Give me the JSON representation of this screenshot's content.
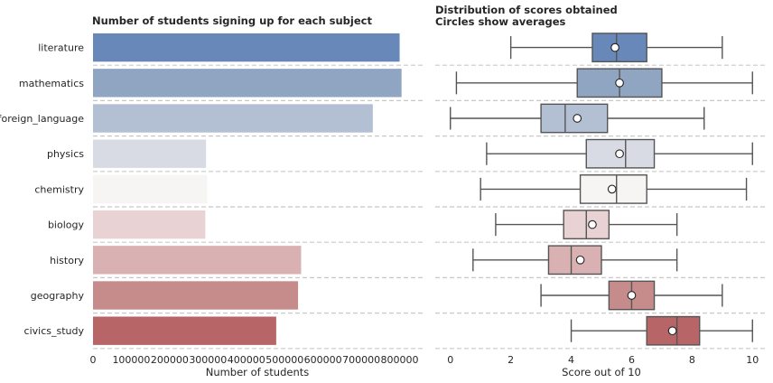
{
  "chart_data": [
    {
      "type": "bar",
      "orientation": "horizontal",
      "title": "Number of students signing up for each subject",
      "xlabel": "Number of students",
      "ylabel": "",
      "xlim": [
        0,
        860000
      ],
      "xticks": [
        "0",
        "100000",
        "200000",
        "300000",
        "400000",
        "500000",
        "600000",
        "700000",
        "800000"
      ],
      "xtick_values": [
        0,
        100000,
        200000,
        300000,
        400000,
        500000,
        600000,
        700000,
        800000
      ],
      "categories": [
        "literature",
        "mathematics",
        "foreign_language",
        "physics",
        "chemistry",
        "biology",
        "history",
        "geography",
        "civics_study"
      ],
      "values": [
        800000,
        805000,
        730000,
        295000,
        298000,
        293000,
        543000,
        535000,
        478000
      ],
      "colors": [
        "#6788b8",
        "#8fa5c2",
        "#b3bfd3",
        "#d8dbe4",
        "#f7f4f4",
        "#e8d2d3",
        "#d9b1b2",
        "#c68c8c",
        "#b76566"
      ],
      "grid": "dashed separators between rows"
    },
    {
      "type": "box",
      "orientation": "horizontal",
      "title": "Distribution of scores obtained\nCircles show averages",
      "title_lines": [
        "Distribution of scores obtained",
        "Circles show averages"
      ],
      "xlabel": "Score out of 10",
      "ylabel": "",
      "xlim": [
        -0.5,
        10.5
      ],
      "xticks": [
        "0",
        "2",
        "4",
        "6",
        "8",
        "10"
      ],
      "xtick_values": [
        0,
        2,
        4,
        6,
        8,
        10
      ],
      "categories": [
        "literature",
        "mathematics",
        "foreign_language",
        "physics",
        "chemistry",
        "biology",
        "history",
        "geography",
        "civics_study"
      ],
      "boxes": [
        {
          "min": 2.0,
          "q1": 4.7,
          "median": 5.5,
          "q3": 6.5,
          "max": 9.0,
          "mean": 5.45
        },
        {
          "min": 0.2,
          "q1": 4.2,
          "median": 5.6,
          "q3": 7.0,
          "max": 10.0,
          "mean": 5.6
        },
        {
          "min": 0.0,
          "q1": 3.0,
          "median": 3.8,
          "q3": 5.2,
          "max": 8.4,
          "mean": 4.2
        },
        {
          "min": 1.2,
          "q1": 4.5,
          "median": 5.8,
          "q3": 6.75,
          "max": 10.0,
          "mean": 5.6
        },
        {
          "min": 1.0,
          "q1": 4.3,
          "median": 5.5,
          "q3": 6.5,
          "max": 9.8,
          "mean": 5.35
        },
        {
          "min": 1.5,
          "q1": 3.75,
          "median": 4.5,
          "q3": 5.25,
          "max": 7.5,
          "mean": 4.7
        },
        {
          "min": 0.75,
          "q1": 3.25,
          "median": 4.0,
          "q3": 5.0,
          "max": 7.5,
          "mean": 4.3
        },
        {
          "min": 3.0,
          "q1": 5.25,
          "median": 6.0,
          "q3": 6.75,
          "max": 9.0,
          "mean": 6.0
        },
        {
          "min": 4.0,
          "q1": 6.5,
          "median": 7.5,
          "q3": 8.25,
          "max": 10.0,
          "mean": 7.35
        }
      ],
      "colors": [
        "#6788b8",
        "#8fa5c2",
        "#b3bfd3",
        "#d8dbe4",
        "#f7f4f4",
        "#e8d2d3",
        "#d9b1b2",
        "#c68c8c",
        "#b76566"
      ],
      "grid": "dashed separators between rows"
    }
  ]
}
